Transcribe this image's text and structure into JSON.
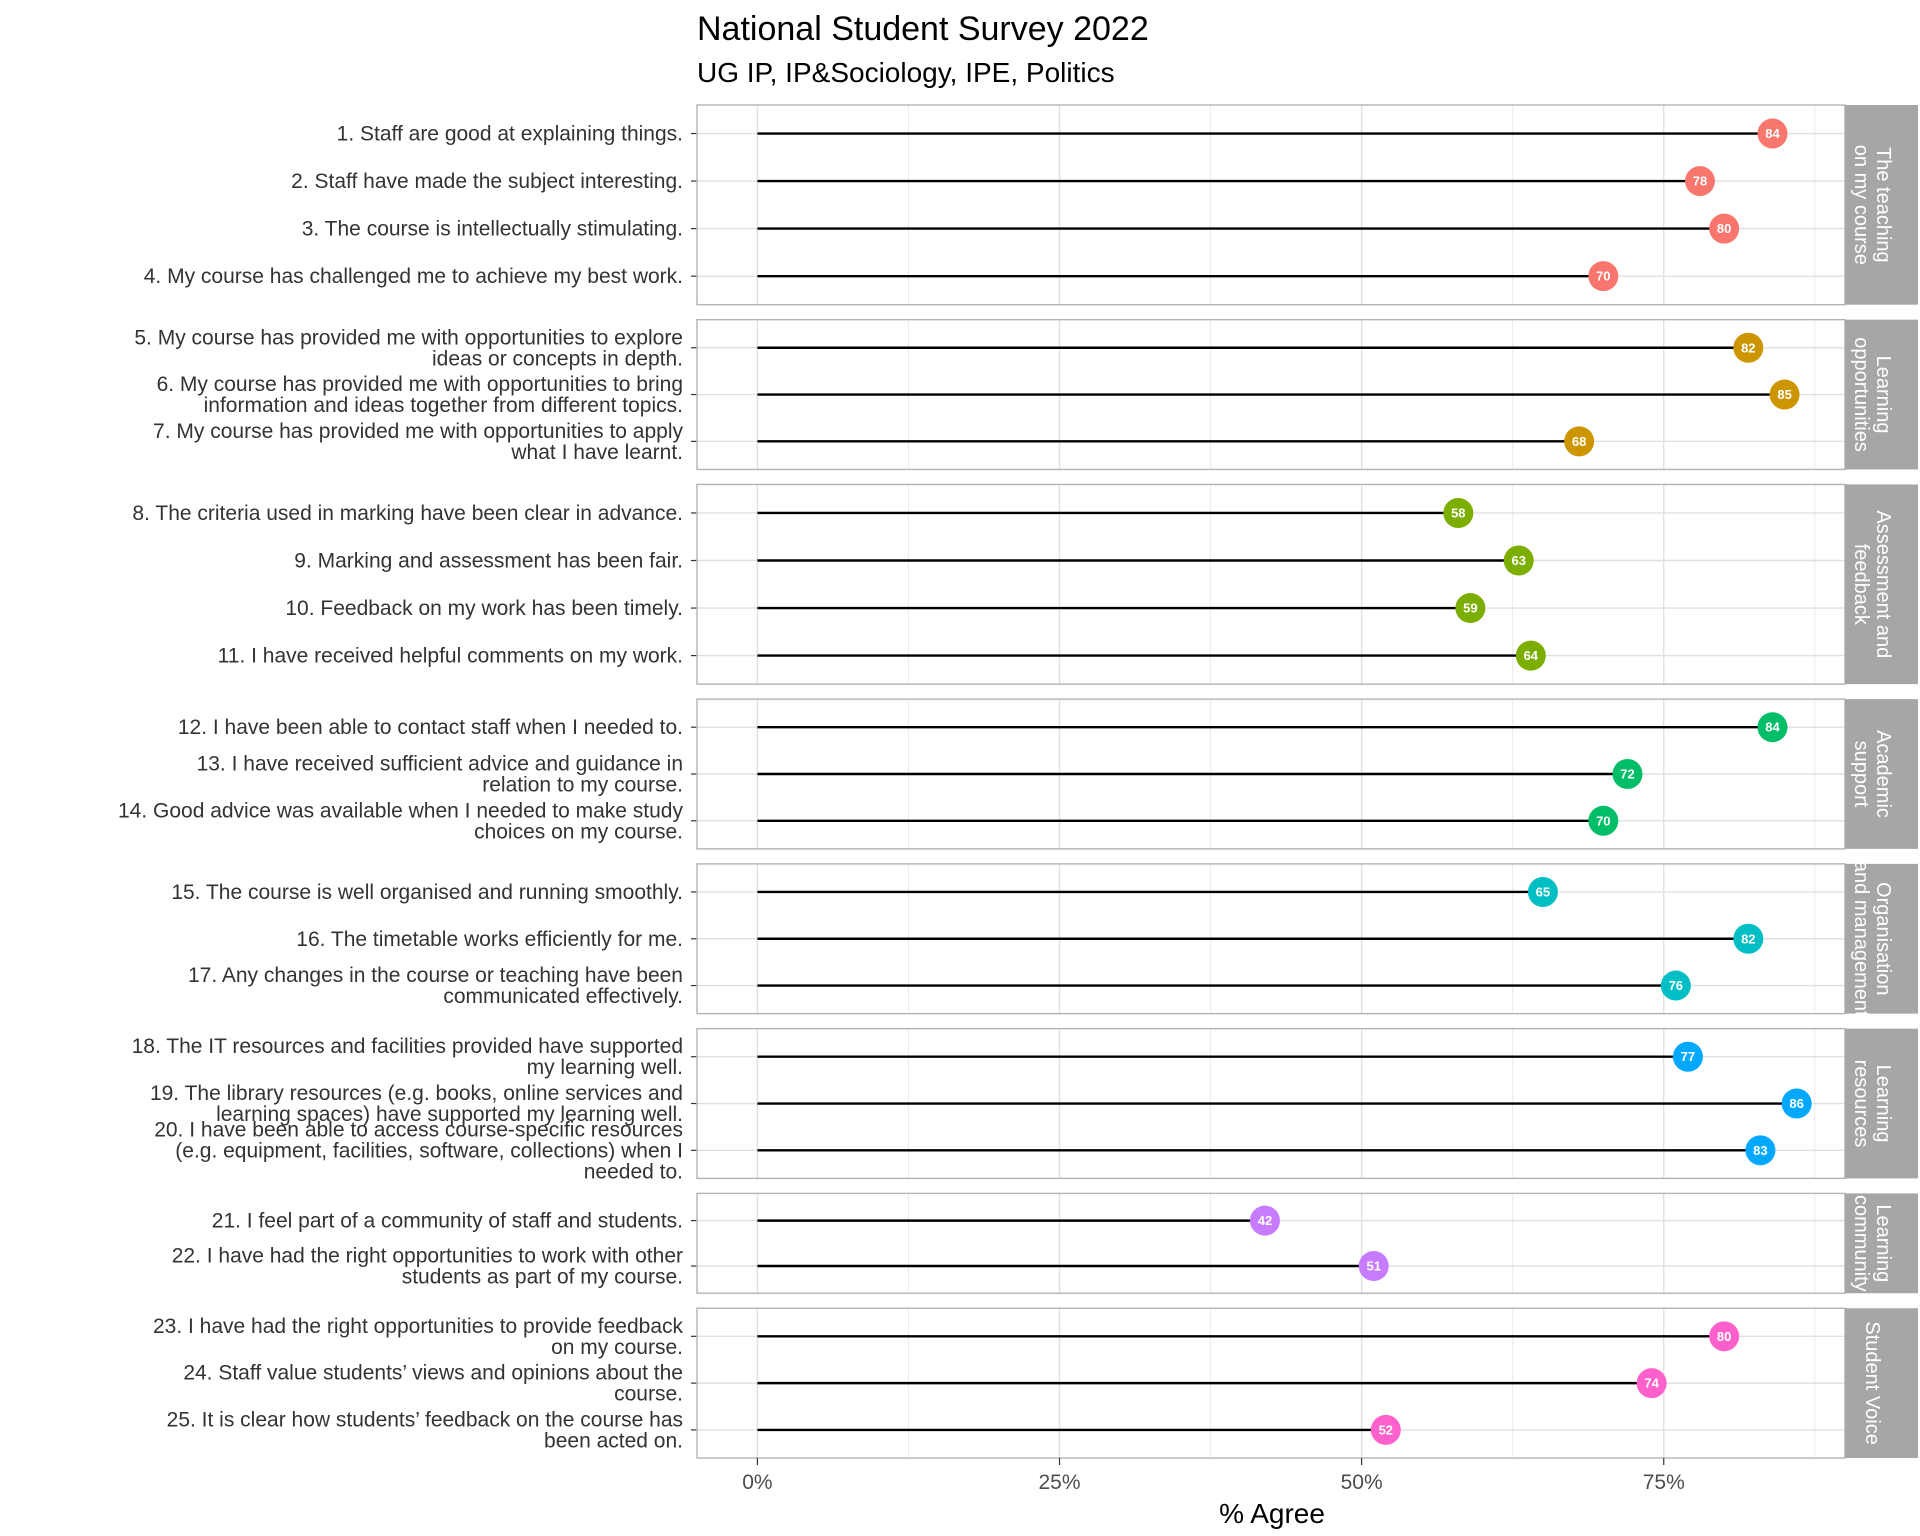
{
  "chart_data": {
    "type": "lollipop",
    "title": "National Student Survey 2022",
    "subtitle": "UG IP, IP&Sociology, IPE, Politics",
    "xlabel": "% Agree",
    "ylabel": "",
    "xlim": [
      -0.05,
      0.9
    ],
    "x_ticks": [
      0,
      0.25,
      0.5,
      0.75
    ],
    "x_tick_labels": [
      "0%",
      "25%",
      "50%",
      "75%"
    ],
    "grid": true,
    "facets": [
      {
        "name": "The teaching on my course",
        "strip_lines": [
          "The teaching",
          "on my course"
        ],
        "color": "#F8766D",
        "questions": [
          {
            "label_lines": [
              "1. Staff are good at explaining things."
            ],
            "value": 84
          },
          {
            "label_lines": [
              "2. Staff have made the subject interesting."
            ],
            "value": 78
          },
          {
            "label_lines": [
              "3. The course is intellectually stimulating."
            ],
            "value": 80
          },
          {
            "label_lines": [
              "4. My course has challenged me to achieve my best work."
            ],
            "value": 70
          }
        ]
      },
      {
        "name": "Learning opportunities",
        "strip_lines": [
          "Learning",
          "opportunities"
        ],
        "color": "#CD9600",
        "questions": [
          {
            "label_lines": [
              "5. My course has provided me with opportunities to explore",
              "ideas or concepts in depth."
            ],
            "value": 82
          },
          {
            "label_lines": [
              "6. My course has provided me with opportunities to bring",
              "information and ideas together from different topics."
            ],
            "value": 85
          },
          {
            "label_lines": [
              "7. My course has provided me with opportunities to apply",
              "what I have learnt."
            ],
            "value": 68
          }
        ]
      },
      {
        "name": "Assessment and feedback",
        "strip_lines": [
          "Assessment and",
          "feedback"
        ],
        "color": "#7CAE00",
        "questions": [
          {
            "label_lines": [
              "8. The criteria used in marking have been clear in advance."
            ],
            "value": 58
          },
          {
            "label_lines": [
              "9. Marking and assessment has been fair."
            ],
            "value": 63
          },
          {
            "label_lines": [
              "10. Feedback on my work has been timely."
            ],
            "value": 59
          },
          {
            "label_lines": [
              "11. I have received helpful comments on my work."
            ],
            "value": 64
          }
        ]
      },
      {
        "name": "Academic support",
        "strip_lines": [
          "Academic",
          "support"
        ],
        "color": "#00BE67",
        "questions": [
          {
            "label_lines": [
              "12. I have been able to contact staff when I needed to."
            ],
            "value": 84
          },
          {
            "label_lines": [
              "13. I have received sufficient advice and guidance in",
              "relation to my course."
            ],
            "value": 72
          },
          {
            "label_lines": [
              "14. Good advice was available when I needed to make study",
              "choices on my course."
            ],
            "value": 70
          }
        ]
      },
      {
        "name": "Organisation and management",
        "strip_lines": [
          "Organisation",
          "and management"
        ],
        "color": "#00BFC4",
        "questions": [
          {
            "label_lines": [
              "15. The course is well organised and running smoothly."
            ],
            "value": 65
          },
          {
            "label_lines": [
              "16. The timetable works efficiently for me."
            ],
            "value": 82
          },
          {
            "label_lines": [
              "17. Any changes in the course or teaching have been",
              "communicated effectively."
            ],
            "value": 76
          }
        ]
      },
      {
        "name": "Learning resources",
        "strip_lines": [
          "Learning",
          "resources"
        ],
        "color": "#00A9FF",
        "questions": [
          {
            "label_lines": [
              "18. The IT resources and facilities provided have supported",
              "my learning well."
            ],
            "value": 77
          },
          {
            "label_lines": [
              "19. The library resources (e.g. books, online services and",
              "learning spaces) have supported my learning well."
            ],
            "value": 86
          },
          {
            "label_lines": [
              "20. I have been able to access course-specific resources",
              "(e.g. equipment, facilities, software, collections) when I",
              "needed to."
            ],
            "value": 83
          }
        ]
      },
      {
        "name": "Learning community",
        "strip_lines": [
          "Learning",
          "community"
        ],
        "color": "#C77CFF",
        "questions": [
          {
            "label_lines": [
              "21. I feel part of a community of staff and students."
            ],
            "value": 42
          },
          {
            "label_lines": [
              "22. I have had the right opportunities to work with other",
              "students as part of my course."
            ],
            "value": 51
          }
        ]
      },
      {
        "name": "Student Voice",
        "strip_lines": [
          "Student Voice"
        ],
        "color": "#FF61CC",
        "questions": [
          {
            "label_lines": [
              "23. I have had the right opportunities to provide feedback",
              "on my course."
            ],
            "value": 80
          },
          {
            "label_lines": [
              "24. Staff value students’ views and opinions about the",
              "course."
            ],
            "value": 74
          },
          {
            "label_lines": [
              "25. It is clear how students’ feedback on the course has",
              "been acted on."
            ],
            "value": 52
          }
        ]
      }
    ]
  }
}
